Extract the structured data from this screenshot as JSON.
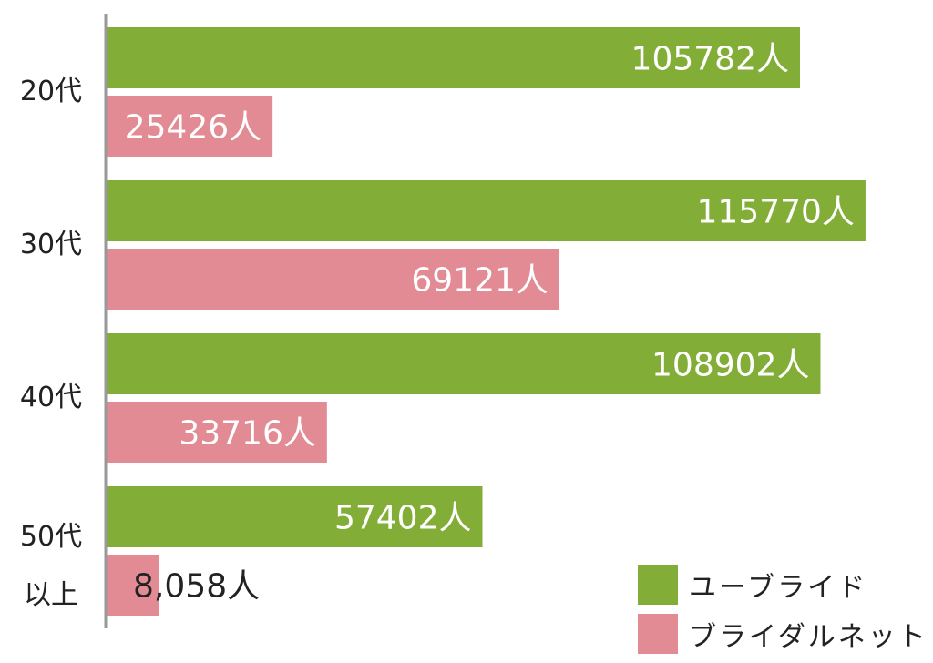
{
  "chart_data": {
    "type": "bar",
    "orientation": "horizontal",
    "categories": [
      "20代",
      "30代",
      "40代",
      "50代\n以上"
    ],
    "series": [
      {
        "name": "ユーブライド",
        "color": "#82ad37",
        "values": [
          105782,
          115770,
          108902,
          57402
        ],
        "labels": [
          "105782人",
          "115770人",
          "108902人",
          "57402人"
        ]
      },
      {
        "name": "ブライダルネット",
        "color": "#e38b94",
        "values": [
          25426,
          69121,
          33716,
          8058
        ],
        "labels": [
          "25426人",
          "69121人",
          "33716人",
          "8,058人"
        ]
      }
    ],
    "xlim": [
      0,
      118000
    ],
    "grid": false,
    "legend": "bottom-right"
  }
}
